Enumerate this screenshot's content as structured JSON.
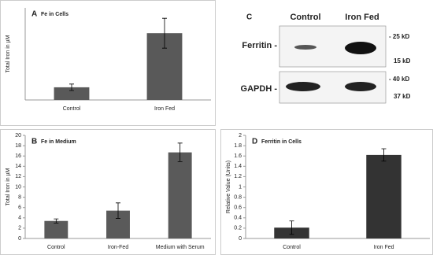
{
  "chart_data": [
    {
      "type": "bar",
      "panel_label": "A",
      "title": "Fe in Cells",
      "ylabel": "Total Iron in µM",
      "categories": [
        "Control",
        "Iron Fed"
      ],
      "values": [
        11,
        58
      ],
      "errors": [
        2.8,
        13
      ],
      "color": "#595959",
      "ylim": [
        0,
        80
      ]
    },
    {
      "type": "bar",
      "panel_label": "B",
      "title": "Fe in Medium",
      "ylabel": "Total Iron in µM",
      "categories": [
        "Control",
        "Iron-Fed",
        "Medium with Serum"
      ],
      "values": [
        3.4,
        5.4,
        16.7
      ],
      "errors": [
        0.4,
        1.5,
        1.8
      ],
      "color": "#5a5a5a",
      "ylim": [
        0,
        20
      ],
      "yticks": [
        0,
        2,
        4,
        6,
        8,
        10,
        12,
        14,
        16,
        18,
        20
      ]
    },
    {
      "type": "bar",
      "panel_label": "D",
      "title": "Ferritin in Cells",
      "ylabel": "Relative Value (Units)",
      "categories": [
        "Control",
        "Iron Fed"
      ],
      "values": [
        0.21,
        1.62
      ],
      "errors": [
        0.13,
        0.12
      ],
      "color": "#333333",
      "ylim": [
        0,
        2
      ],
      "yticks": [
        0,
        0.2,
        0.4,
        0.6,
        0.8,
        1,
        1.2,
        1.4,
        1.6,
        1.8,
        2
      ]
    }
  ],
  "blot": {
    "panel_label": "C",
    "columns": [
      "Control",
      "Iron Fed"
    ],
    "rows": [
      "Ferritin -",
      "GAPDH -"
    ],
    "markers": [
      "- 25 kD",
      "15 kD",
      "- 40 kD",
      "37 kD"
    ]
  }
}
